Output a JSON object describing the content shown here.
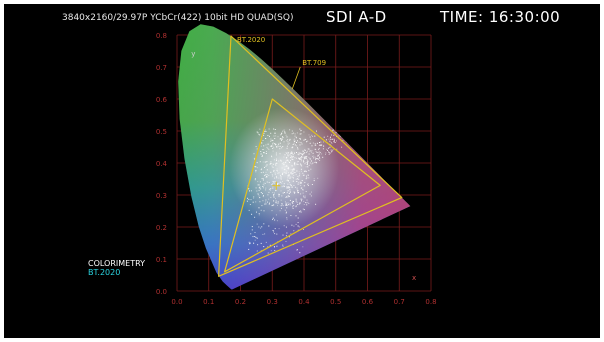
{
  "header": {
    "format": "3840x2160/29.97P YCbCr(422) 10bit HD QUAD(SQ)",
    "input": "SDI A-D",
    "time_label": "TIME:",
    "time_value": "16:30:00"
  },
  "chart_data": {
    "type": "scatter",
    "title": "",
    "xlabel": "x",
    "ylabel": "y",
    "xlim": [
      0.0,
      0.8
    ],
    "ylim": [
      0.0,
      0.8
    ],
    "x_ticks": [
      "0.0",
      "0.1",
      "0.2",
      "0.3",
      "0.4",
      "0.5",
      "0.6",
      "0.7",
      "0.8"
    ],
    "y_ticks": [
      "0.0",
      "0.1",
      "0.2",
      "0.3",
      "0.4",
      "0.5",
      "0.6",
      "0.7",
      "0.8"
    ],
    "grid": true,
    "white_point": {
      "x": 0.3127,
      "y": 0.329
    },
    "gamuts": [
      {
        "name": "BT.2020",
        "points": [
          [
            0.708,
            0.292
          ],
          [
            0.17,
            0.797
          ],
          [
            0.131,
            0.046
          ]
        ],
        "color": "#e0c020"
      },
      {
        "name": "BT.709",
        "points": [
          [
            0.64,
            0.33
          ],
          [
            0.3,
            0.6
          ],
          [
            0.15,
            0.06
          ]
        ],
        "color": "#e0c020"
      }
    ]
  },
  "colorimetry": {
    "title": "COLORIMETRY",
    "standard": "BT.2020"
  },
  "colors": {
    "grid": "#7a1c1c",
    "gamut_line": "#e0c020",
    "standard_text": "#2ad4e0"
  }
}
